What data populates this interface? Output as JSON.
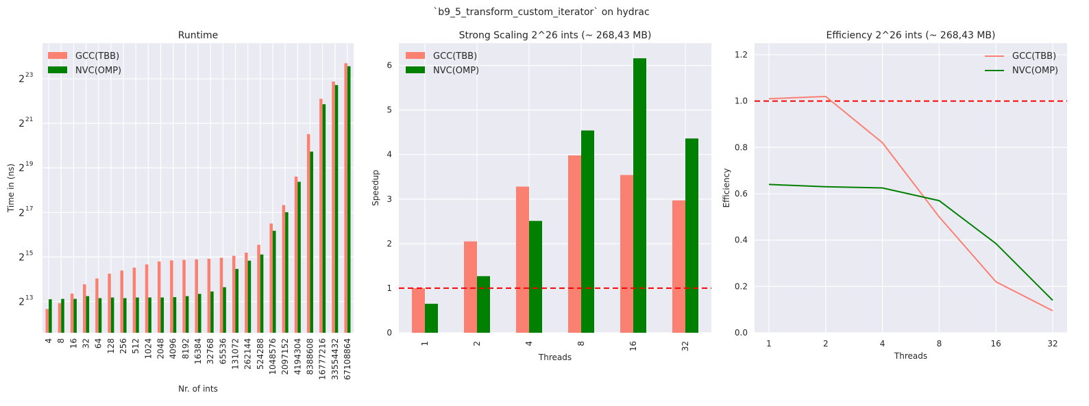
{
  "suptitle": "`b9_5_transform_custom_iterator` on hydrac",
  "colors": {
    "gcc": "#fa8072",
    "nvc": "#008000",
    "plot_bg": "#eaeaf2",
    "grid": "#ffffff",
    "ref": "#ff0000"
  },
  "chart_data": [
    {
      "type": "bar",
      "title": "Runtime",
      "xlabel": "Nr. of ints",
      "ylabel": "Time in (ns)",
      "yscale": "log2",
      "ylim_log2": [
        11.6,
        24.6
      ],
      "ytick_base": "2",
      "ytick_exponents": [
        "13",
        "15",
        "17",
        "19",
        "21",
        "23"
      ],
      "legend_position": "upper left",
      "categories": [
        "4",
        "8",
        "16",
        "32",
        "64",
        "128",
        "256",
        "512",
        "1024",
        "2048",
        "4096",
        "8192",
        "16384",
        "32768",
        "65536",
        "131072",
        "262144",
        "524288",
        "1048576",
        "2097152",
        "4194304",
        "8388608",
        "16777216",
        "33554432",
        "67108864"
      ],
      "series": [
        {
          "name": "GCC(TBB)",
          "color": "#fa8072",
          "values": [
            6500,
            7800,
            10500,
            14000,
            16800,
            19500,
            21500,
            23500,
            26000,
            28500,
            29500,
            30000,
            30500,
            31000,
            32000,
            34000,
            37500,
            48000,
            93000,
            165000,
            400000,
            1500000,
            4500000,
            7700000,
            13600000
          ]
        },
        {
          "name": "NVC(OMP)",
          "color": "#008000",
          "values": [
            8800,
            8900,
            8900,
            9700,
            9100,
            9300,
            9100,
            9300,
            9300,
            9300,
            9400,
            9700,
            10400,
            11200,
            12800,
            22600,
            29200,
            35400,
            74000,
            132000,
            340000,
            870000,
            3800000,
            6900000,
            12400000
          ]
        }
      ]
    },
    {
      "type": "bar",
      "title": "Strong Scaling 2^26 ints (~ 268,43 MB)",
      "xlabel": "Threads",
      "ylabel": "Speedup",
      "ylim": [
        0,
        6.5
      ],
      "yticks": [
        "0",
        "1",
        "2",
        "3",
        "4",
        "5",
        "6"
      ],
      "reference_line": 1,
      "legend_position": "upper left",
      "categories": [
        "1",
        "2",
        "4",
        "8",
        "16",
        "32"
      ],
      "series": [
        {
          "name": "GCC(TBB)",
          "color": "#fa8072",
          "values": [
            1.0,
            2.05,
            3.28,
            3.98,
            3.54,
            2.97
          ]
        },
        {
          "name": "NVC(OMP)",
          "color": "#008000",
          "values": [
            0.65,
            1.27,
            2.51,
            4.54,
            6.16,
            4.36
          ]
        }
      ]
    },
    {
      "type": "line",
      "title": "Efficiency 2^26 ints (~ 268,43 MB)",
      "xlabel": "Threads",
      "ylabel": "Efficiency",
      "xscale": "log2",
      "ylim": [
        0,
        1.25
      ],
      "yticks": [
        "0.0",
        "0.2",
        "0.4",
        "0.6",
        "0.8",
        "1.0",
        "1.2"
      ],
      "reference_line": 1.0,
      "legend_position": "upper right",
      "x": [
        "1",
        "2",
        "4",
        "8",
        "16",
        "32"
      ],
      "series": [
        {
          "name": "GCC(TBB)",
          "color": "#fa8072",
          "values": [
            1.01,
            1.02,
            0.82,
            0.5,
            0.22,
            0.095
          ]
        },
        {
          "name": "NVC(OMP)",
          "color": "#008000",
          "values": [
            0.64,
            0.63,
            0.625,
            0.57,
            0.385,
            0.14
          ]
        }
      ]
    }
  ]
}
